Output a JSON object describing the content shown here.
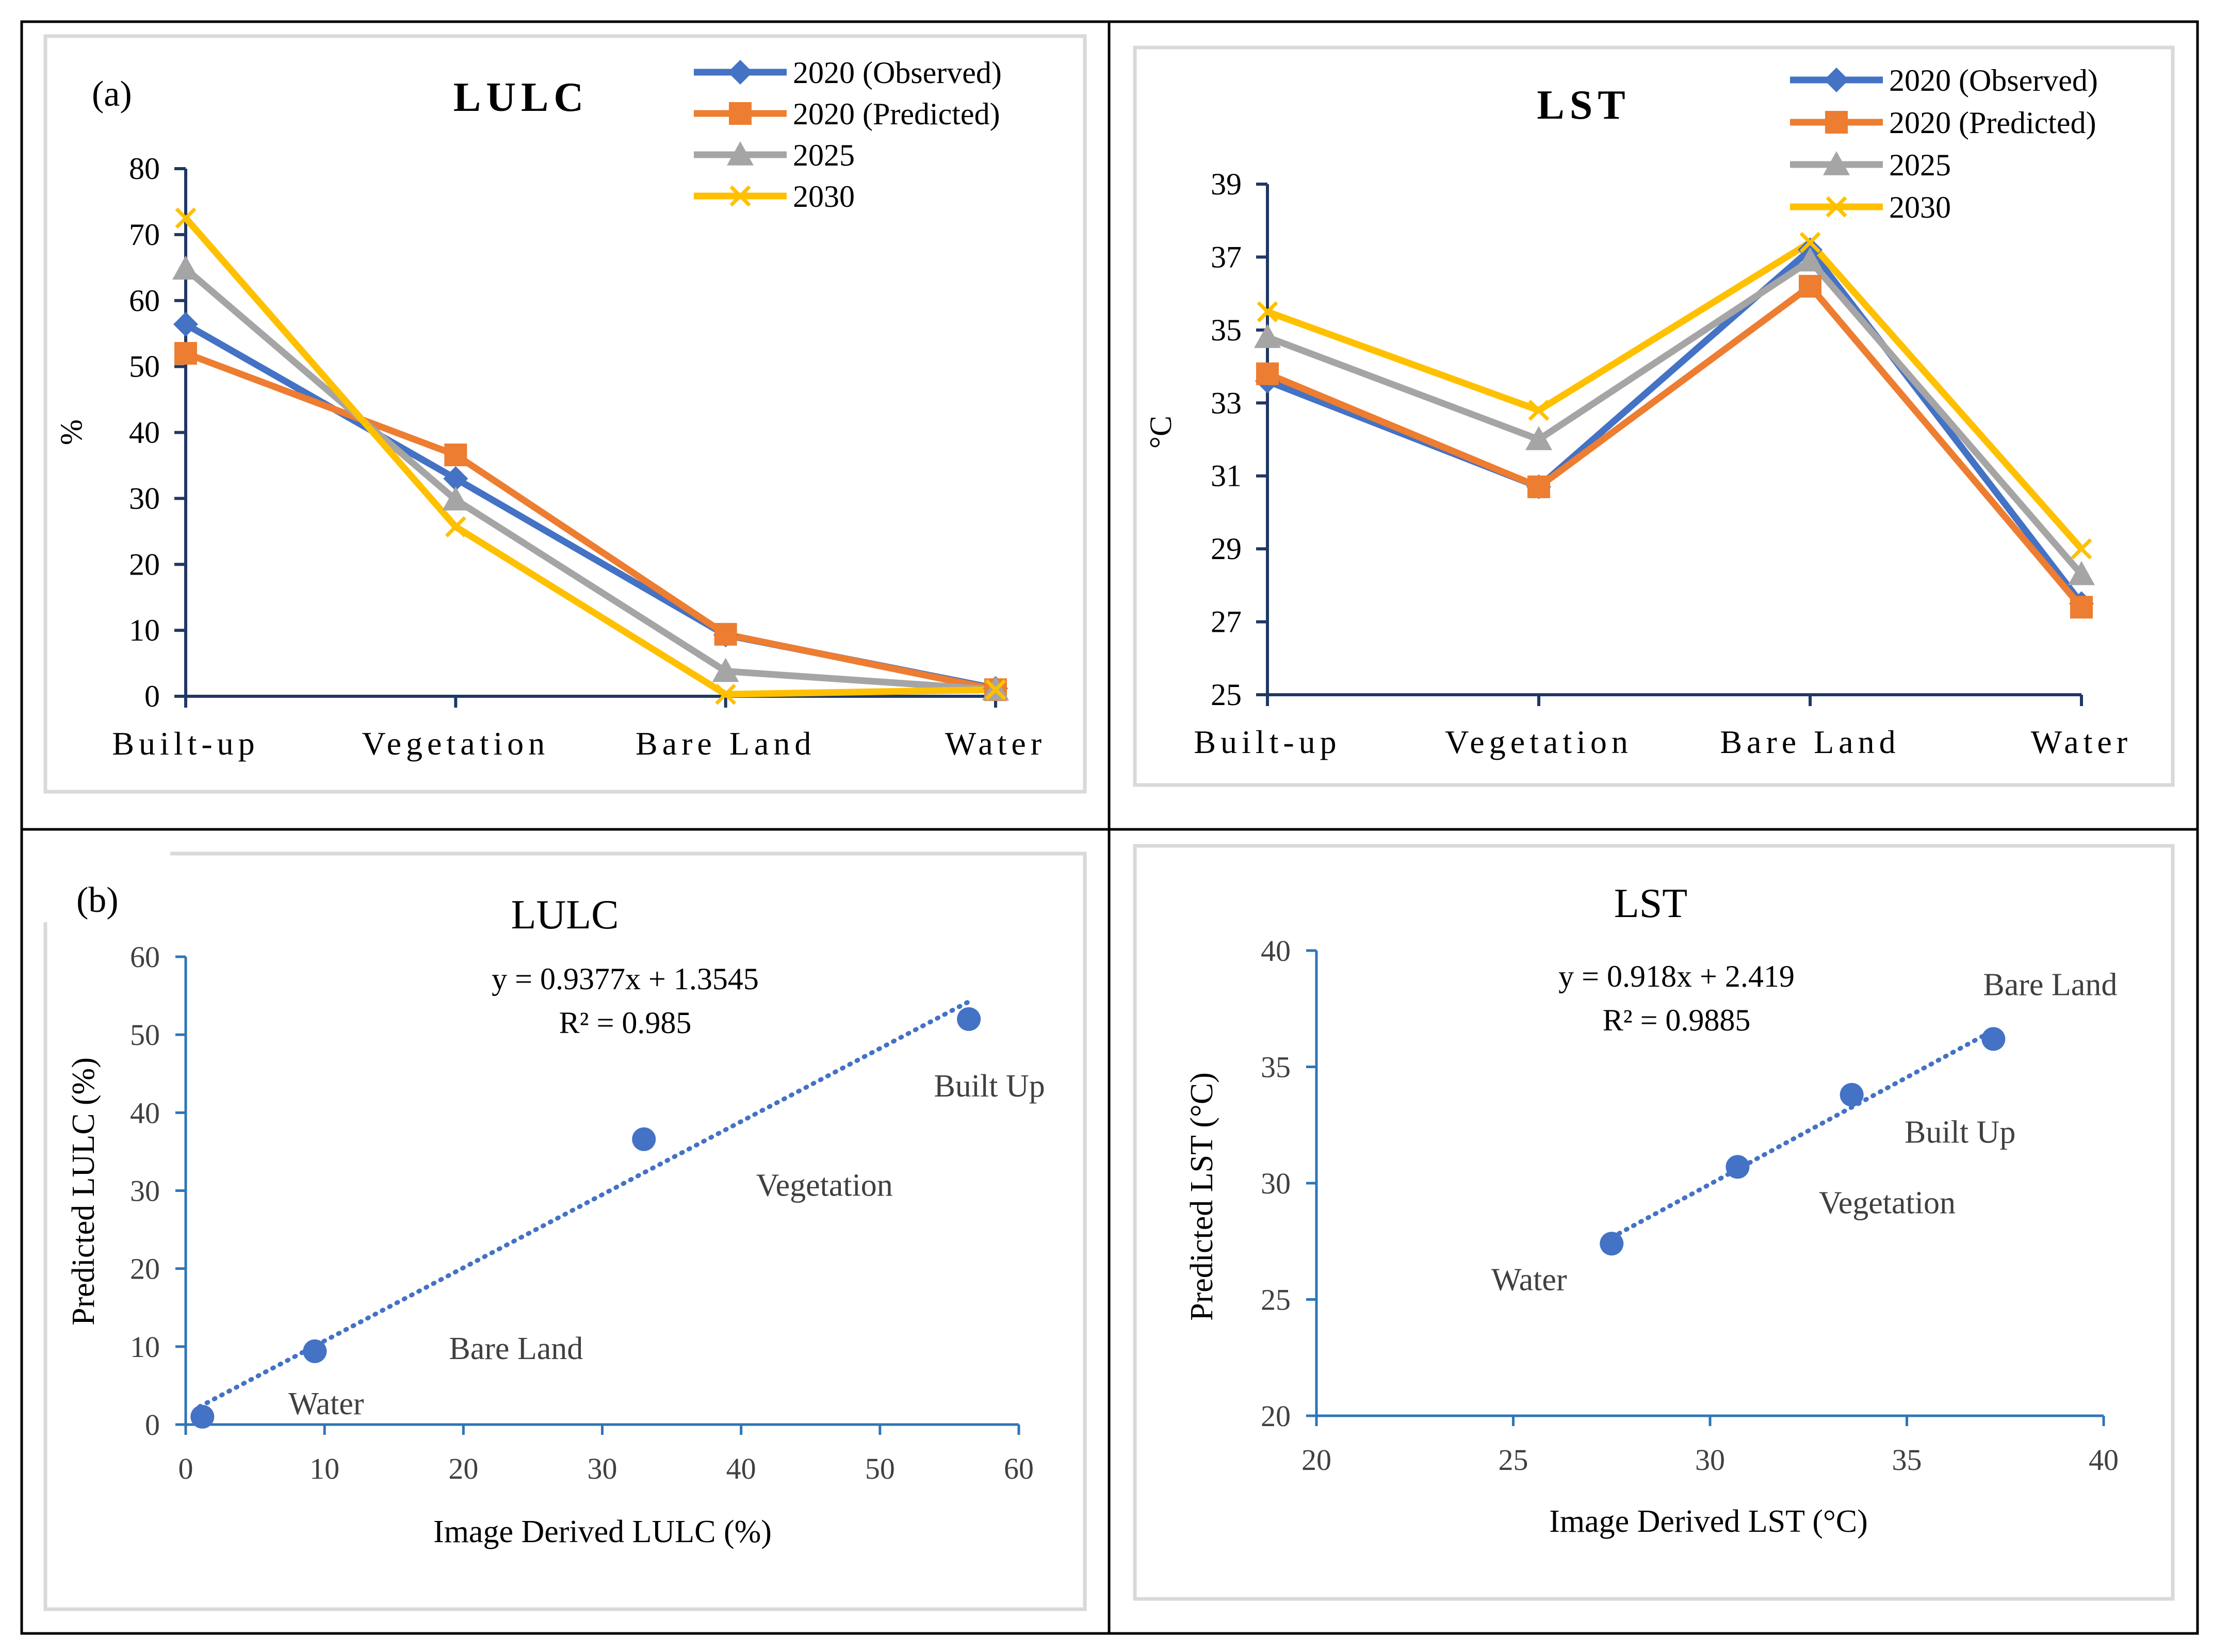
{
  "colors": {
    "observed": "#4472C4",
    "predicted": "#ED7D31",
    "y2025": "#A5A5A5",
    "y2030": "#FFC000",
    "scatter": "#4472C4",
    "axis_line": "#1F3864",
    "scatter_axis": "#2E75B6",
    "text": "#000000",
    "point_label": "#404040",
    "panel_border": "#D9D9D9"
  },
  "panel_labels": {
    "a": "(a)",
    "b": "(b)"
  },
  "chart_data": [
    {
      "id": "lulc-line",
      "type": "line",
      "title": "LULC",
      "xlabel": "",
      "ylabel": "%",
      "categories": [
        "Built-up",
        "Vegetation",
        "Bare Land",
        "Water"
      ],
      "ylim": [
        0,
        80
      ],
      "yticks": [
        0,
        10,
        20,
        30,
        40,
        50,
        60,
        70,
        80
      ],
      "legend_position": "top-right",
      "series": [
        {
          "name": "2020 (Observed)",
          "marker": "diamond",
          "color_key": "observed",
          "values": [
            56.4,
            33.0,
            9.3,
            1.2
          ]
        },
        {
          "name": "2020 (Predicted)",
          "marker": "square",
          "color_key": "predicted",
          "values": [
            52.0,
            36.6,
            9.4,
            1.0
          ]
        },
        {
          "name": "2025",
          "marker": "triangle",
          "color_key": "y2025",
          "values": [
            64.8,
            29.8,
            3.8,
            1.0
          ]
        },
        {
          "name": "2030",
          "marker": "x",
          "color_key": "y2030",
          "values": [
            72.5,
            25.7,
            0.3,
            1.0
          ]
        }
      ]
    },
    {
      "id": "lst-line",
      "type": "line",
      "title": "LST",
      "xlabel": "",
      "ylabel": "°C",
      "categories": [
        "Built-up",
        "Vegetation",
        "Bare Land",
        "Water"
      ],
      "ylim": [
        25,
        39
      ],
      "yticks": [
        25,
        27,
        29,
        31,
        33,
        35,
        37,
        39
      ],
      "legend_position": "top-right",
      "series": [
        {
          "name": "2020 (Observed)",
          "marker": "diamond",
          "color_key": "observed",
          "values": [
            33.6,
            30.7,
            37.2,
            27.5
          ]
        },
        {
          "name": "2020 (Predicted)",
          "marker": "square",
          "color_key": "predicted",
          "values": [
            33.8,
            30.7,
            36.2,
            27.4
          ]
        },
        {
          "name": "2025",
          "marker": "triangle",
          "color_key": "y2025",
          "values": [
            34.8,
            32.0,
            36.9,
            28.3
          ]
        },
        {
          "name": "2030",
          "marker": "x",
          "color_key": "y2030",
          "values": [
            35.5,
            32.8,
            37.4,
            29.0
          ]
        }
      ]
    },
    {
      "id": "lulc-scatter",
      "type": "scatter",
      "title": "LULC",
      "xlabel": "Image Derived LULC (%)",
      "ylabel": "Predicted  LULC (%)",
      "xlim": [
        0,
        60
      ],
      "ylim": [
        0,
        60
      ],
      "xticks": [
        0,
        10,
        20,
        30,
        40,
        50,
        60
      ],
      "yticks": [
        0,
        10,
        20,
        30,
        40,
        50,
        60
      ],
      "equation": "y = 0.9377x + 1.3545",
      "r2": "R² = 0.985",
      "trendline": {
        "slope": 0.9377,
        "intercept": 1.3545,
        "x_range": [
          1,
          56.4
        ]
      },
      "points": [
        {
          "label": "Water",
          "x": 1.2,
          "y": 1.0
        },
        {
          "label": "Bare Land",
          "x": 9.3,
          "y": 9.4
        },
        {
          "label": "Vegetation",
          "x": 33.0,
          "y": 36.6
        },
        {
          "label": "Built Up",
          "x": 56.4,
          "y": 52.0
        }
      ]
    },
    {
      "id": "lst-scatter",
      "type": "scatter",
      "title": "LST",
      "xlabel": "Image Derived LST (°C)",
      "ylabel": "Predicted LST (°C)",
      "xlim": [
        20,
        40
      ],
      "ylim": [
        20,
        40
      ],
      "xticks": [
        20,
        25,
        30,
        35,
        40
      ],
      "yticks": [
        20,
        25,
        30,
        35,
        40
      ],
      "equation": "y = 0.918x + 2.419",
      "r2": "R² = 0.9885",
      "trendline": {
        "slope": 0.918,
        "intercept": 2.419,
        "x_range": [
          27.5,
          37.2
        ]
      },
      "points": [
        {
          "label": "Water",
          "x": 27.5,
          "y": 27.4
        },
        {
          "label": "Vegetation",
          "x": 30.7,
          "y": 30.7
        },
        {
          "label": "Built Up",
          "x": 33.6,
          "y": 33.8
        },
        {
          "label": "Bare Land",
          "x": 37.2,
          "y": 36.2
        }
      ]
    }
  ]
}
